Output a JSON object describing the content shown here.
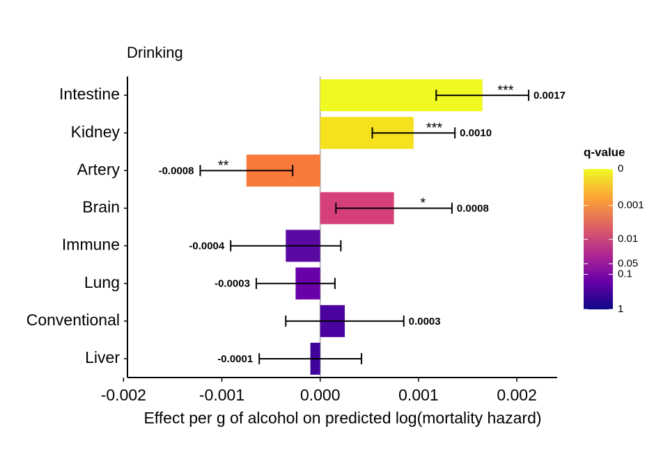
{
  "chart_data": {
    "type": "bar",
    "orientation": "horizontal",
    "title": "Drinking",
    "x_label": "Effect per g of alcohol on predicted log(mortality hazard)",
    "categories": [
      "Intestine",
      "Kidney",
      "Artery",
      "Brain",
      "Immune",
      "Lung",
      "Conventional",
      "Liver"
    ],
    "values": [
      0.00165,
      0.00095,
      -0.00075,
      0.00075,
      -0.00035,
      -0.00025,
      0.00025,
      -0.0001
    ],
    "value_labels": [
      "0.0017",
      "0.0010",
      "-0.0008",
      "0.0008",
      "-0.0004",
      "-0.0003",
      "0.0003",
      "-0.0001"
    ],
    "errors": [
      0.00047,
      0.00042,
      0.00047,
      0.00059,
      0.00056,
      0.0004,
      0.0006,
      0.00052
    ],
    "significance": [
      "***",
      "***",
      "**",
      "*",
      null,
      null,
      null,
      null
    ],
    "colors": [
      "#f0f921",
      "#f5e11e",
      "#f9793a",
      "#d6407a",
      "#5a0aa3",
      "#6a00a8",
      "#4c02a1",
      "#3f049c"
    ],
    "xlim": [
      -0.00196,
      0.00241
    ],
    "xticks": [
      -0.002,
      -0.001,
      {
        "value": 0,
        "label": "0.000"
      },
      0.001,
      0.002
    ],
    "colorbar": {
      "title": "q-value",
      "ticks": [
        0,
        0.001,
        0.01,
        0.05,
        0.1,
        1
      ],
      "colors": [
        "#f0f921",
        "#fca636",
        "#e16462",
        "#b12a90",
        "#6a00a8",
        "#0d0887"
      ]
    }
  }
}
